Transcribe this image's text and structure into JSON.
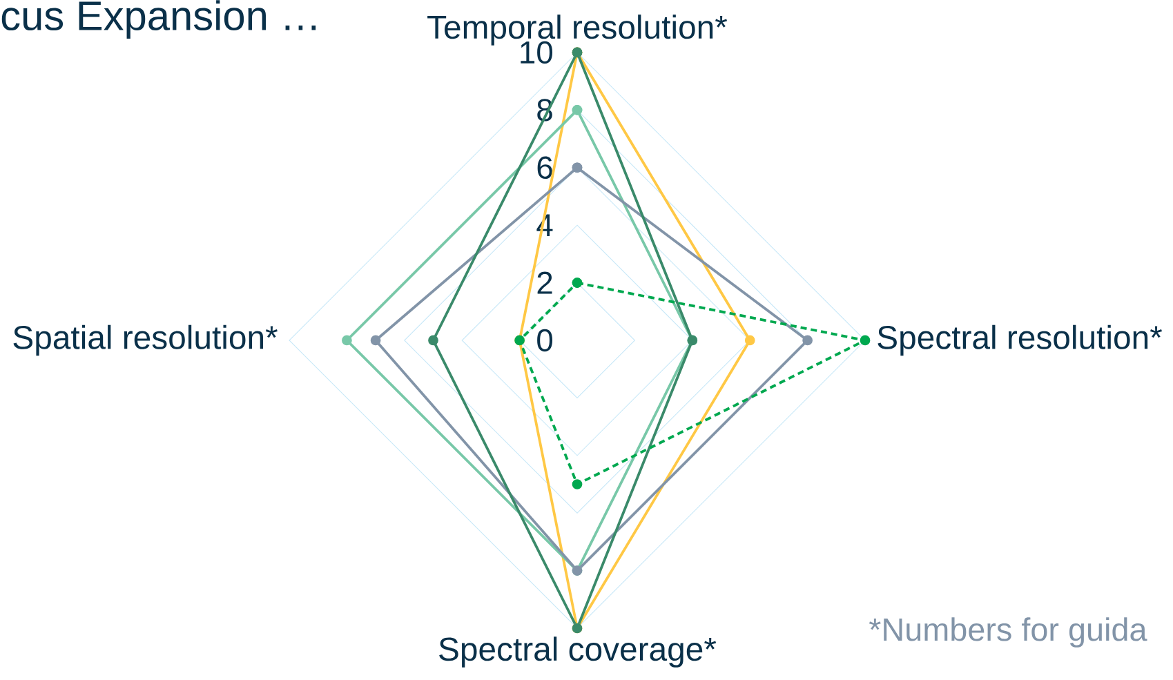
{
  "chart_data": {
    "type": "radar",
    "title": "cus Expansion …",
    "categories": [
      "Temporal resolution*",
      "Spectral resolution*",
      "Spectral coverage*",
      "Spatial resolution*"
    ],
    "series": [
      {
        "color": "#ffc845",
        "values": [
          10,
          6,
          10,
          2
        ]
      },
      {
        "color": "#78c8a8",
        "values": [
          8,
          4,
          8,
          8
        ]
      },
      {
        "color": "#8294a8",
        "values": [
          6,
          8,
          8,
          7
        ]
      },
      {
        "color": "#3a8a6a",
        "values": [
          10,
          4,
          10,
          5
        ]
      },
      {
        "color": "#00a84f",
        "values": [
          2,
          10,
          5,
          2
        ],
        "line_style": "dashed"
      }
    ],
    "ylim": [
      0,
      10
    ],
    "yticks": [
      0,
      2,
      4,
      6,
      8,
      10
    ],
    "grid": true,
    "marker": "circle",
    "annotations": [
      "*Numbers for guida"
    ]
  }
}
